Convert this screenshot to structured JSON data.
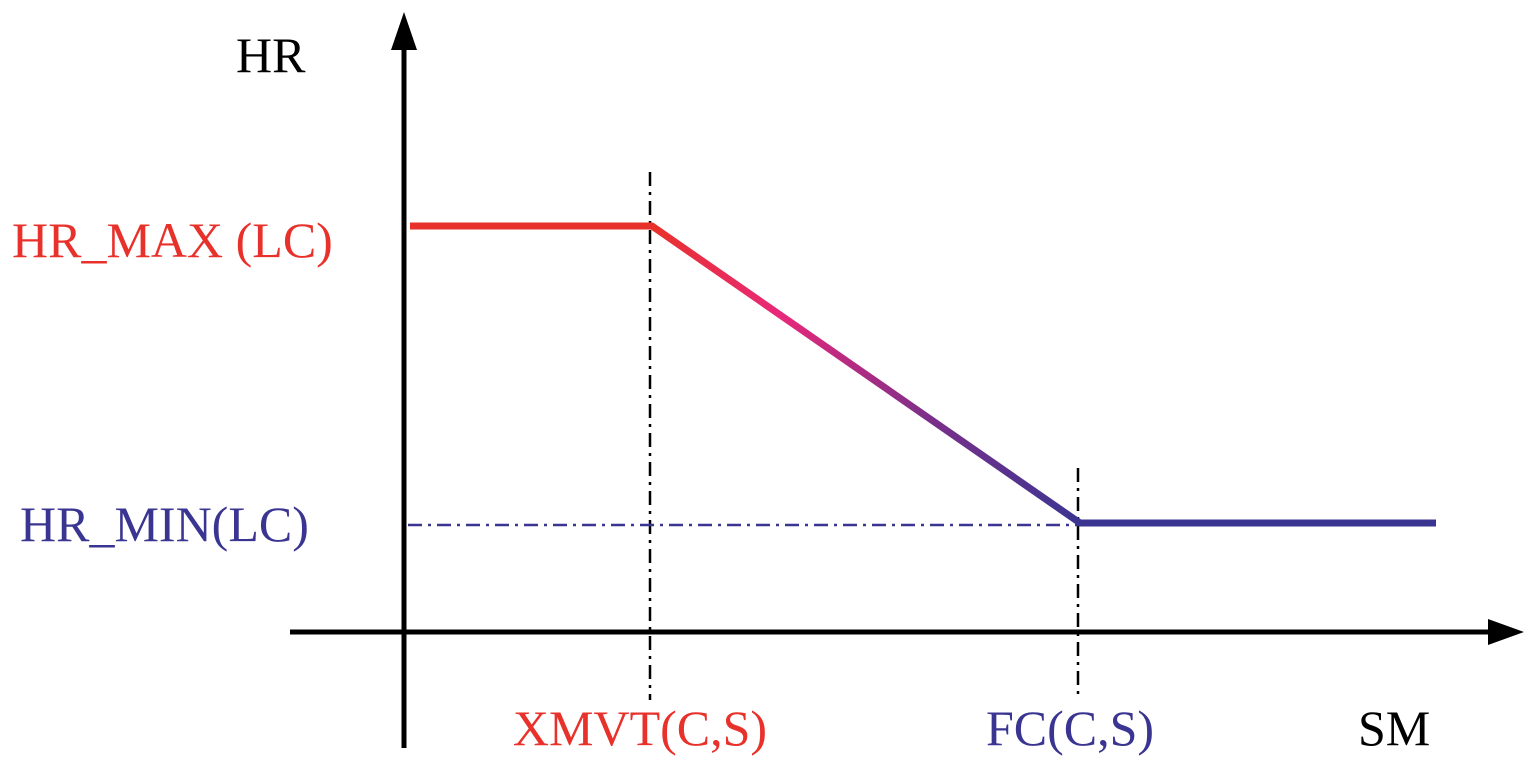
{
  "chart_data": {
    "type": "line",
    "title": "",
    "xlabel": "SM",
    "ylabel": "HR",
    "y_levels": {
      "max_label": "HR_MAX (LC)",
      "min_label": "HR_MIN(LC)"
    },
    "x_marks": {
      "first_label": "XMVT(C,S)",
      "second_label": "FC(C,S)"
    },
    "segments": [
      "constant at HR_MAX (LC) up to XMVT(C,S)",
      "linear decrease from XMVT(C,S) to FC(C,S)",
      "constant at HR_MIN(LC) beyond FC(C,S)"
    ],
    "colors": {
      "max": "#e8312a",
      "mid": "#e8287a",
      "min": "#3a3591",
      "axis": "#000000"
    }
  }
}
